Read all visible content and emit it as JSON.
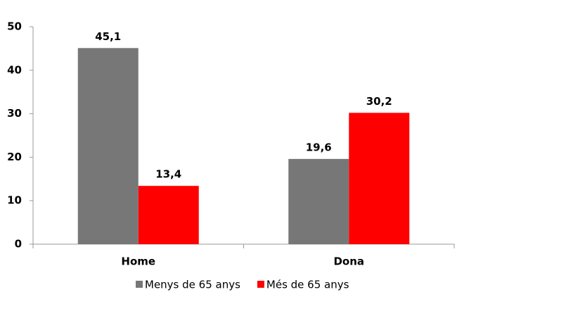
{
  "chart_data": {
    "type": "bar",
    "categories": [
      "Home",
      "Dona"
    ],
    "series": [
      {
        "name": "Menys de 65 anys",
        "color": "#777777",
        "values": [
          45.1,
          19.6
        ],
        "value_labels": [
          "45,1",
          "19,6"
        ]
      },
      {
        "name": "Més de 65 anys",
        "color": "#ff0000",
        "values": [
          13.4,
          30.2
        ],
        "value_labels": [
          "13,4",
          "30,2"
        ]
      }
    ],
    "ylim": [
      0,
      50
    ],
    "yticks": [
      0,
      10,
      20,
      30,
      40,
      50
    ],
    "grid": false,
    "legend": "bottom"
  }
}
